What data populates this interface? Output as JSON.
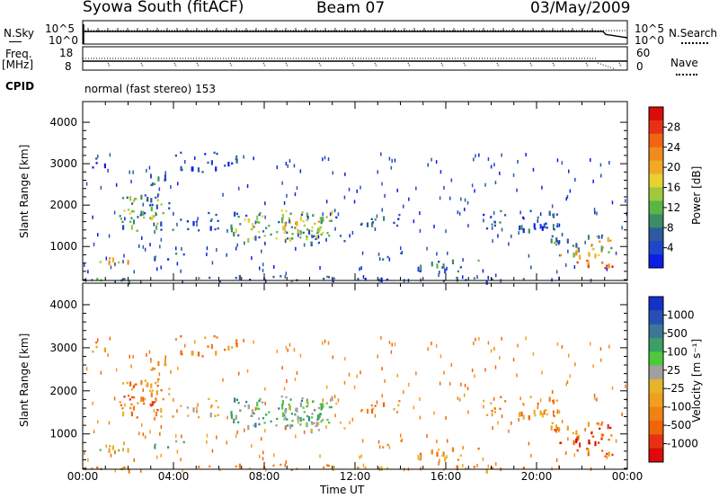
{
  "header": {
    "station": "Syowa South (fitACF)",
    "beam": "Beam 07",
    "date": "03/May/2009"
  },
  "top_panels": {
    "nsky_label": "N.Sky",
    "nsky_ticks": [
      "10^5",
      "10^0"
    ],
    "nsearch_label": "N.Search",
    "nsearch_ticks": [
      "10^5",
      "10^0"
    ],
    "freq_label_1": "Freq.",
    "freq_label_2": "[MHz]",
    "freq_ticks": [
      "18",
      "8"
    ],
    "nave_label": "Nave",
    "nave_ticks": [
      "60",
      "0"
    ],
    "cpid_label": "CPID",
    "cpid_value": "normal (fast stereo) 153"
  },
  "chart_data": [
    {
      "type": "heatmap",
      "title": "",
      "ylabel": "Slant Range [km]",
      "xlabel": "",
      "x_ticks": [
        "00:00",
        "04:00",
        "08:00",
        "12:00",
        "16:00",
        "20:00",
        "00:00"
      ],
      "y_ticks": [
        "1000",
        "2000",
        "3000",
        "4000"
      ],
      "ylim": [
        180,
        4500
      ],
      "xlim_hours": [
        0,
        24
      ],
      "colorbar": {
        "label": "Power [dB]",
        "ticks": [
          "4",
          "8",
          "12",
          "16",
          "20",
          "24",
          "28"
        ],
        "colors": [
          "#0a1ee6",
          "#1e46c8",
          "#2d5aa0",
          "#3c8c64",
          "#5ab446",
          "#a0c83c",
          "#e6d232",
          "#f0aa28",
          "#f08c1e",
          "#f06414",
          "#e63214",
          "#dc0a0a"
        ]
      },
      "grid": false
    },
    {
      "type": "heatmap",
      "title": "",
      "ylabel": "Slant Range [km]",
      "xlabel": "Time UT",
      "x_ticks": [
        "00:00",
        "04:00",
        "08:00",
        "12:00",
        "16:00",
        "20:00",
        "00:00"
      ],
      "y_ticks": [
        "1000",
        "2000",
        "3000",
        "4000"
      ],
      "ylim": [
        180,
        4500
      ],
      "xlim_hours": [
        0,
        24
      ],
      "colorbar": {
        "label": "Velocity [m s⁻¹]",
        "ticks": [
          "1000",
          "500",
          "100",
          "25",
          "-25",
          "-100",
          "-500",
          "-1000"
        ],
        "colors": [
          "#1432c8",
          "#2850b4",
          "#3c7896",
          "#3ca064",
          "#50c83c",
          "#a0a0a0",
          "#e6b428",
          "#f0a01e",
          "#f08214",
          "#f0640a",
          "#e63214",
          "#dc0a0a"
        ]
      },
      "grid": false
    }
  ]
}
